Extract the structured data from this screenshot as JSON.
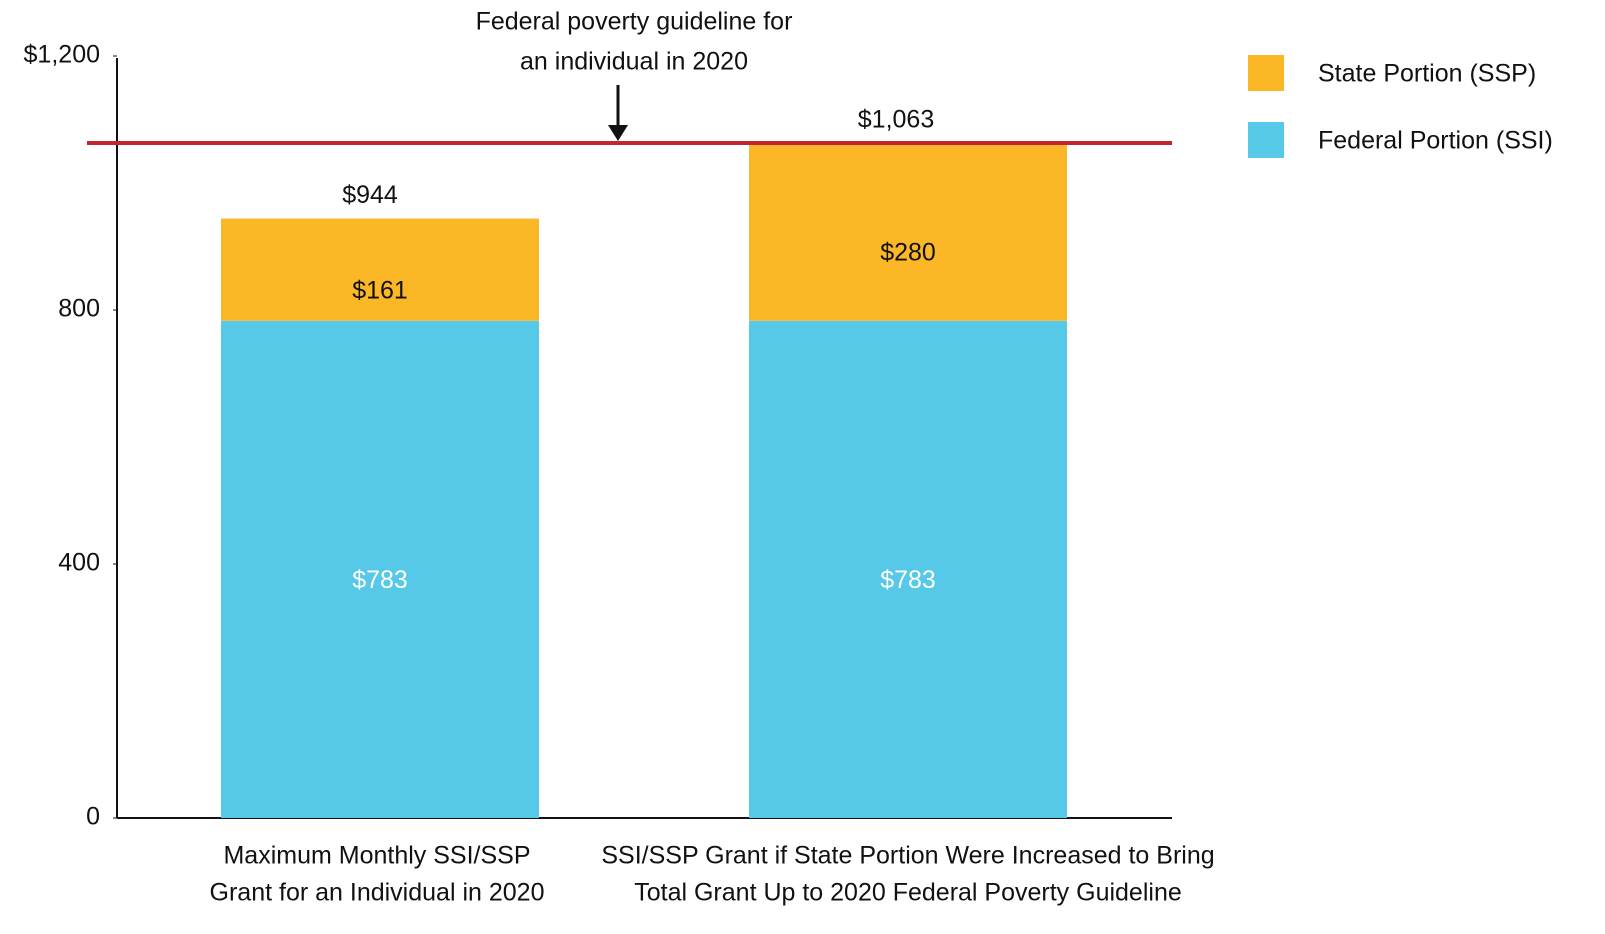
{
  "chart_data": {
    "type": "stacked_bar",
    "categories": [
      [
        "Maximum Monthly SSI/SSP",
        "Grant for an Individual in 2020"
      ],
      [
        "SSI/SSP Grant if State Portion Were Increased to Bring",
        "Total Grant Up to 2020 Federal Poverty Guideline"
      ]
    ],
    "series": [
      {
        "name": "Federal Portion (SSI)",
        "color": "#56c8e8",
        "values": [
          783,
          783
        ],
        "value_labels": [
          "$783",
          "$783"
        ]
      },
      {
        "name": "State Portion (SSP)",
        "color": "#fbb725",
        "values": [
          161,
          280
        ],
        "value_labels": [
          "$161",
          "$280"
        ]
      }
    ],
    "totals": {
      "values": [
        944,
        1063
      ],
      "value_labels": [
        "$944",
        "$1,063"
      ]
    },
    "reference_line": {
      "value": 1063,
      "color": "#c1272d",
      "label": [
        "Federal poverty guideline for",
        "an individual in 2020"
      ]
    },
    "ylim": [
      0,
      1200
    ],
    "yticks": [
      0,
      400,
      800,
      {
        "value": 1200,
        "label": "$1,200"
      }
    ],
    "legend": "top-right"
  }
}
